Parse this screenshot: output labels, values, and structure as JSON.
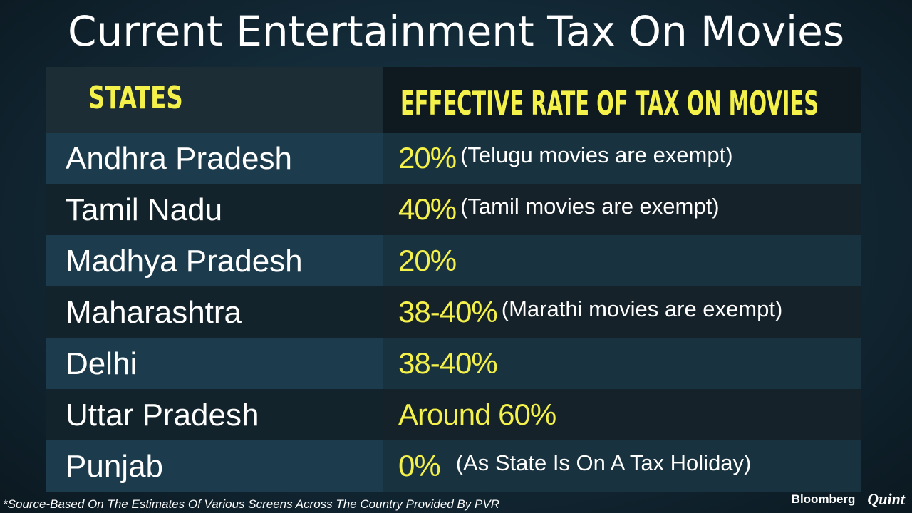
{
  "title": "Current Entertainment Tax On Movies",
  "table": {
    "headers": {
      "states": "STATES",
      "rate": "EFFECTIVE RATE OF TAX ON MOVIES"
    },
    "rows": [
      {
        "state": "Andhra Pradesh",
        "rate": "20%",
        "note": "(Telugu movies are exempt)"
      },
      {
        "state": "Tamil Nadu",
        "rate": "40%",
        "note": "(Tamil movies are exempt)"
      },
      {
        "state": "Madhya Pradesh",
        "rate": "20%",
        "note": ""
      },
      {
        "state": "Maharashtra",
        "rate": "38-40%",
        "note": "(Marathi movies are exempt)"
      },
      {
        "state": "Delhi",
        "rate": "38-40%",
        "note": ""
      },
      {
        "state": "Uttar Pradesh",
        "rate": "Around 60%",
        "note": ""
      },
      {
        "state": "Punjab",
        "rate": "0%",
        "note": "(As State Is On A Tax Holiday)"
      }
    ]
  },
  "footnote": "*Source-Based On The Estimates Of Various Screens Across The Country Provided By PVR",
  "brand": {
    "primary": "Bloomberg",
    "secondary": "Quint"
  },
  "colors": {
    "accent_yellow": "#f4f14a",
    "text_white": "#ffffff"
  }
}
